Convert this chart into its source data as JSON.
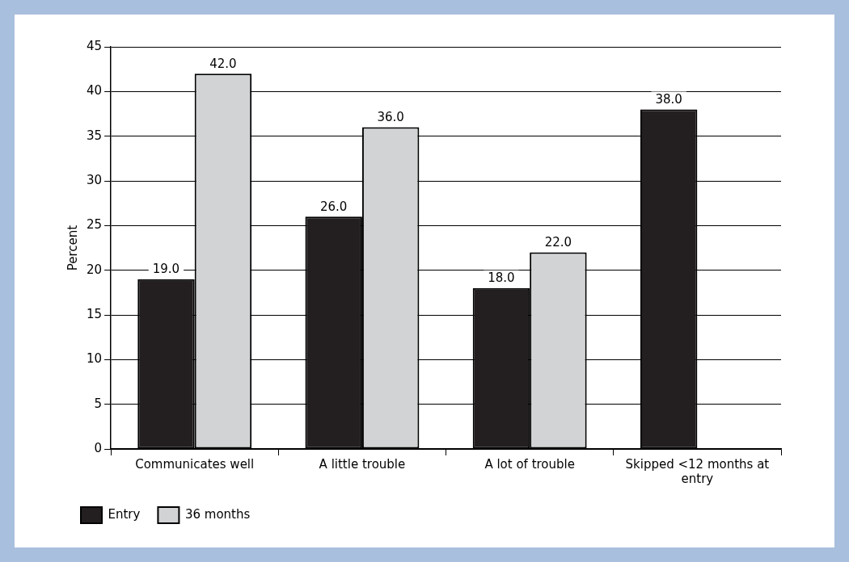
{
  "chart_data": {
    "type": "bar",
    "ylabel": "Percent",
    "categories": [
      "Communicates well",
      "A little trouble",
      "A lot of trouble",
      "Skipped <12 months at entry"
    ],
    "series": [
      {
        "name": "Entry",
        "color": "#231f20",
        "values": [
          19.0,
          26.0,
          18.0,
          38.0
        ],
        "value_labels": [
          "19.0",
          "26.0",
          "18.0",
          "38.0"
        ]
      },
      {
        "name": "36 months",
        "color": "#d1d3d4",
        "values": [
          42.0,
          36.0,
          22.0,
          null
        ],
        "value_labels": [
          "42.0",
          "36.0",
          "22.0",
          null
        ]
      }
    ],
    "ylim": [
      0,
      45
    ],
    "yticks": [
      0,
      5,
      10,
      15,
      20,
      25,
      30,
      35,
      40,
      45
    ],
    "grid": "y",
    "legend": "bottom left"
  }
}
